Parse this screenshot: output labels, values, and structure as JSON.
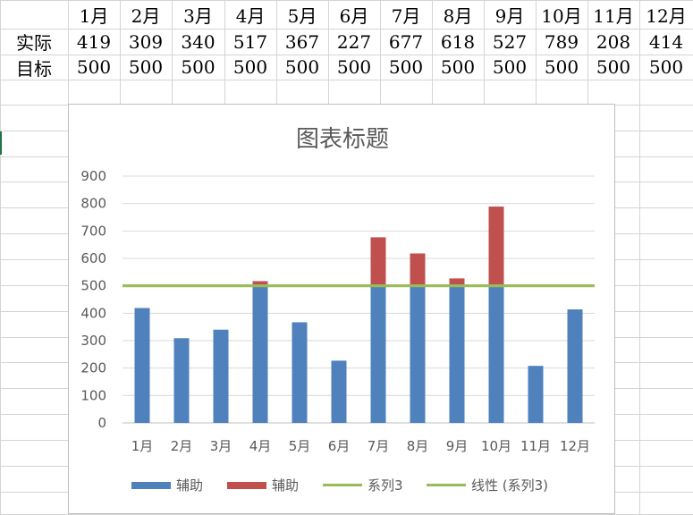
{
  "sheet": {
    "months": [
      "1月",
      "2月",
      "3月",
      "4月",
      "5月",
      "6月",
      "7月",
      "8月",
      "9月",
      "10月",
      "11月",
      "12月"
    ],
    "rows": [
      {
        "label": "实际",
        "values": [
          "419",
          "309",
          "340",
          "517",
          "367",
          "227",
          "677",
          "618",
          "527",
          "789",
          "208",
          "414"
        ]
      },
      {
        "label": "目标",
        "values": [
          "500",
          "500",
          "500",
          "500",
          "500",
          "500",
          "500",
          "500",
          "500",
          "500",
          "500",
          "500"
        ]
      }
    ]
  },
  "colors": {
    "blue": "#4f81bd",
    "red": "#c0504d",
    "green": "#9bbb59",
    "axis_text": "#595959",
    "gridline": "#d9d9d9"
  },
  "chart_data": {
    "type": "bar",
    "title": "图表标题",
    "categories": [
      "1月",
      "2月",
      "3月",
      "4月",
      "5月",
      "6月",
      "7月",
      "8月",
      "9月",
      "10月",
      "11月",
      "12月"
    ],
    "series": [
      {
        "name": "辅助",
        "kind": "bar",
        "color": "#4f81bd",
        "values": [
          419,
          309,
          340,
          500,
          367,
          227,
          500,
          500,
          500,
          500,
          208,
          414
        ]
      },
      {
        "name": "辅助",
        "kind": "bar",
        "color": "#c0504d",
        "values": [
          0,
          0,
          0,
          17,
          0,
          0,
          177,
          118,
          27,
          289,
          0,
          0
        ]
      },
      {
        "name": "系列3",
        "kind": "line",
        "color": "#9bbb59",
        "values": [
          500,
          500,
          500,
          500,
          500,
          500,
          500,
          500,
          500,
          500,
          500,
          500
        ]
      },
      {
        "name": "线性 (系列3)",
        "kind": "trendline",
        "color": "#9bbb59",
        "values": [
          500,
          500,
          500,
          500,
          500,
          500,
          500,
          500,
          500,
          500,
          500,
          500
        ]
      }
    ],
    "stacked": true,
    "ylim": [
      0,
      900
    ],
    "yticks": [
      0,
      100,
      200,
      300,
      400,
      500,
      600,
      700,
      800,
      900
    ],
    "xlabel": "",
    "ylabel": "",
    "grid": true,
    "legend": "bottom"
  }
}
